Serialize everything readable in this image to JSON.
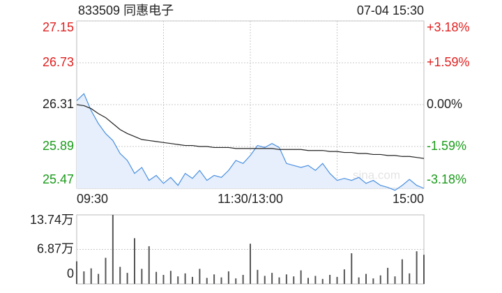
{
  "chart_data": [
    {
      "type": "line",
      "title": "833509 同惠电子",
      "date": "07-04 15:30",
      "watermark": "sina.com",
      "x": [
        0,
        5,
        10,
        15,
        20,
        25,
        30,
        35,
        40,
        45,
        50,
        55,
        60,
        65,
        70,
        75,
        80,
        85,
        90,
        95,
        100,
        105,
        110,
        115,
        120,
        125,
        130,
        135,
        140,
        145,
        150,
        155,
        160,
        165,
        170,
        175,
        180,
        185,
        190,
        195,
        200,
        205,
        210,
        215,
        220,
        225,
        230,
        235,
        240
      ],
      "xlim": [
        0,
        240
      ],
      "xticks": [
        {
          "value": 0,
          "label": "09:30"
        },
        {
          "value": 120,
          "label": "11:30/13:00"
        },
        {
          "value": 240,
          "label": "15:00"
        }
      ],
      "ylim": [
        25.47,
        27.15
      ],
      "yticks": [
        27.15,
        26.73,
        26.31,
        25.89,
        25.47
      ],
      "y2lim": [
        -3.18,
        3.18
      ],
      "y2ticks": [
        {
          "value": 3.18,
          "label": "+3.18%"
        },
        {
          "value": 1.59,
          "label": "+1.59%"
        },
        {
          "value": 0,
          "label": "0.00%"
        },
        {
          "value": -1.59,
          "label": "-1.59%"
        },
        {
          "value": -3.18,
          "label": "-3.18%"
        }
      ],
      "grid": true,
      "series": [
        {
          "color": "#4a8fe0",
          "area_color": "#e6effb",
          "values": [
            26.35,
            26.42,
            26.25,
            26.12,
            26.02,
            25.95,
            25.82,
            25.75,
            25.62,
            25.68,
            25.55,
            25.6,
            25.52,
            25.58,
            25.5,
            25.62,
            25.57,
            25.65,
            25.55,
            25.6,
            25.58,
            25.65,
            25.75,
            25.72,
            25.8,
            25.9,
            25.88,
            25.92,
            25.88,
            25.72,
            25.7,
            25.68,
            25.7,
            25.65,
            25.72,
            25.62,
            25.55,
            25.57,
            25.55,
            25.58,
            25.52,
            25.55,
            25.5,
            25.48,
            25.45,
            25.5,
            25.56,
            25.5,
            25.47
          ]
        },
        {
          "color": "#222222",
          "values": [
            26.31,
            26.3,
            26.27,
            26.22,
            26.18,
            26.12,
            26.06,
            26.02,
            25.99,
            25.96,
            25.95,
            25.94,
            25.93,
            25.92,
            25.91,
            25.9,
            25.9,
            25.89,
            25.89,
            25.88,
            25.88,
            25.88,
            25.87,
            25.87,
            25.87,
            25.87,
            25.87,
            25.87,
            25.86,
            25.86,
            25.86,
            25.86,
            25.85,
            25.85,
            25.85,
            25.84,
            25.84,
            25.83,
            25.83,
            25.82,
            25.82,
            25.81,
            25.81,
            25.8,
            25.8,
            25.79,
            25.79,
            25.78,
            25.77
          ]
        }
      ]
    },
    {
      "type": "bar",
      "color": "#555555",
      "x": [
        0,
        5,
        10,
        15,
        20,
        25,
        30,
        35,
        40,
        45,
        50,
        55,
        60,
        65,
        70,
        75,
        80,
        85,
        90,
        95,
        100,
        105,
        110,
        115,
        120,
        125,
        130,
        135,
        140,
        145,
        150,
        155,
        160,
        165,
        170,
        175,
        180,
        185,
        190,
        195,
        200,
        205,
        210,
        215,
        220,
        225,
        230,
        235,
        240
      ],
      "xlim": [
        0,
        240
      ],
      "ylim": [
        0,
        13.74
      ],
      "yticks": [
        0,
        {
          "value": 6.87,
          "label": "6.87万"
        },
        {
          "value": 13.74,
          "label": "13.74万"
        }
      ],
      "grid": true,
      "values": [
        4.5,
        2.5,
        3.1,
        2.0,
        5.2,
        13.74,
        3.4,
        2.2,
        9.1,
        3.0,
        7.5,
        2.4,
        1.8,
        2.6,
        1.5,
        2.1,
        1.4,
        3.0,
        1.2,
        1.9,
        1.3,
        2.5,
        1.1,
        1.8,
        8.0,
        2.8,
        1.6,
        2.2,
        1.3,
        1.9,
        1.5,
        2.7,
        1.2,
        1.6,
        1.0,
        1.8,
        1.4,
        2.9,
        6.1,
        1.3,
        2.0,
        1.1,
        1.7,
        3.2,
        1.5,
        4.9,
        2.1,
        6.5,
        5.8
      ]
    }
  ]
}
